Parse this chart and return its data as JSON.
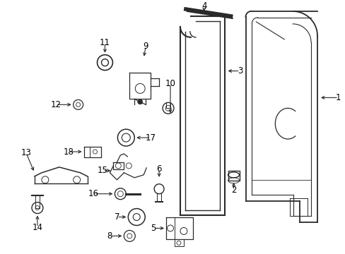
{
  "background_color": "#ffffff",
  "line_color": "#2a2a2a",
  "fig_width": 4.89,
  "fig_height": 3.6,
  "dpi": 100
}
